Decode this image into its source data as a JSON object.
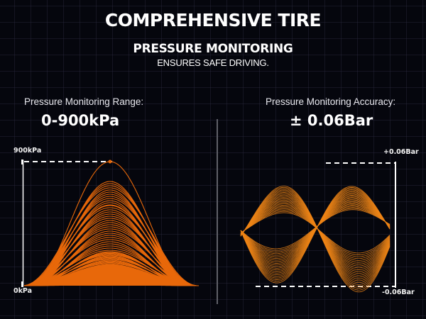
{
  "header": {
    "title_line1": "COMPREHENSIVE TIRE",
    "title_line2": "PRESSURE MONITORING",
    "subtitle": "ENSURES SAFE DRIVING."
  },
  "left_panel": {
    "label": "Pressure Monitoring Range:",
    "value": "0-900kPa",
    "axis_top": "900kPa",
    "axis_bottom": "0kPa"
  },
  "right_panel": {
    "label": "Pressure Monitoring Accuracy:",
    "value": "± 0.06Bar",
    "axis_top": "+0.06Bar",
    "axis_bottom": "-0.06Bar"
  },
  "colors": {
    "background": "#05060d",
    "accent_orange": "#e8680a",
    "accent_orange_light": "#f0861a",
    "divider": "#5f6068",
    "text": "#ffffff"
  }
}
